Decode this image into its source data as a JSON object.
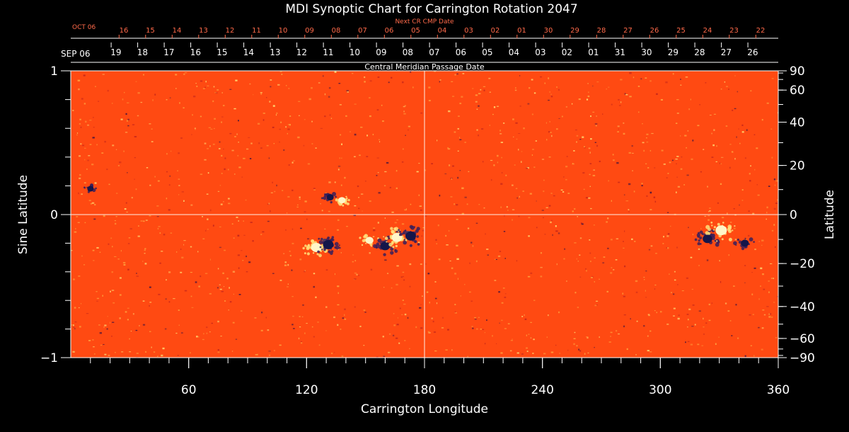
{
  "chart_data": {
    "type": "heatmap",
    "title": "MDI Synoptic Chart for Carrington Rotation 2047",
    "xlabel": "Carrington Longitude",
    "ylabel_left": "Sine Latitude",
    "ylabel_right": "Latitude",
    "xlim": [
      0,
      360
    ],
    "ylim_sine": [
      -1,
      1
    ],
    "x_ticks": [
      "60",
      "120",
      "180",
      "240",
      "300",
      "360"
    ],
    "x_tick_values": [
      60,
      120,
      180,
      240,
      300,
      360
    ],
    "y_left_ticks": [
      "1",
      "0",
      "−1"
    ],
    "y_left_tick_values": [
      1,
      0,
      -1
    ],
    "y_right_ticks": [
      "90",
      "60",
      "40",
      "20",
      "0",
      "−20",
      "−40",
      "−60",
      "−90"
    ],
    "y_right_tick_values": [
      90,
      60,
      40,
      20,
      0,
      -20,
      -40,
      -60,
      -90
    ],
    "colors": {
      "background": "#ff4a12",
      "positive": "#fff6c8",
      "negative": "#14164a",
      "text": "#ffffff",
      "next_cr": "#ff6a4a"
    },
    "cmp_axis": {
      "label": "Central Meridian Passage Date",
      "start_label": "SEP 06",
      "dates": [
        "19",
        "18",
        "17",
        "16",
        "15",
        "14",
        "13",
        "12",
        "11",
        "10",
        "09",
        "08",
        "07",
        "06",
        "05",
        "04",
        "03",
        "02",
        "01",
        "31",
        "30",
        "29",
        "28",
        "27",
        "26"
      ],
      "date_longitudes": [
        23,
        36.5,
        50,
        63.5,
        77,
        90.5,
        104,
        117.5,
        131,
        144.5,
        158,
        171.5,
        185,
        198.5,
        212,
        225.5,
        239,
        252.5,
        266,
        279.5,
        293,
        306.5,
        320,
        333.5,
        347
      ]
    },
    "next_cr_axis": {
      "label": "Next CR CMP Date",
      "start_label": "OCT 06",
      "dates": [
        "16",
        "15",
        "14",
        "13",
        "12",
        "11",
        "10",
        "09",
        "08",
        "07",
        "06",
        "05",
        "04",
        "03",
        "02",
        "01",
        "30",
        "29",
        "28",
        "27",
        "26",
        "25",
        "24",
        "23",
        "22"
      ],
      "date_longitudes": [
        27,
        40.5,
        54,
        67.5,
        81,
        94.5,
        108,
        121.5,
        135,
        148.5,
        162,
        175.5,
        189,
        202.5,
        216,
        229.5,
        243,
        256.5,
        270,
        283.5,
        297,
        310.5,
        324,
        337.5,
        351
      ]
    },
    "active_regions": [
      {
        "lon": 125,
        "sinlat": -0.23,
        "sign": "positive",
        "strength": 0.9
      },
      {
        "lon": 131,
        "sinlat": -0.21,
        "sign": "negative",
        "strength": 0.9
      },
      {
        "lon": 138,
        "sinlat": 0.1,
        "sign": "positive",
        "strength": 0.5
      },
      {
        "lon": 132,
        "sinlat": 0.12,
        "sign": "negative",
        "strength": 0.5
      },
      {
        "lon": 152,
        "sinlat": -0.18,
        "sign": "positive",
        "strength": 0.6
      },
      {
        "lon": 160,
        "sinlat": -0.22,
        "sign": "negative",
        "strength": 0.8
      },
      {
        "lon": 166,
        "sinlat": -0.16,
        "sign": "positive",
        "strength": 0.9
      },
      {
        "lon": 173,
        "sinlat": -0.15,
        "sign": "negative",
        "strength": 0.9
      },
      {
        "lon": 324,
        "sinlat": -0.17,
        "sign": "negative",
        "strength": 0.8
      },
      {
        "lon": 331,
        "sinlat": -0.11,
        "sign": "positive",
        "strength": 1.0
      },
      {
        "lon": 343,
        "sinlat": -0.2,
        "sign": "negative",
        "strength": 0.6
      },
      {
        "lon": 10,
        "sinlat": 0.18,
        "sign": "negative",
        "strength": 0.4
      }
    ]
  }
}
